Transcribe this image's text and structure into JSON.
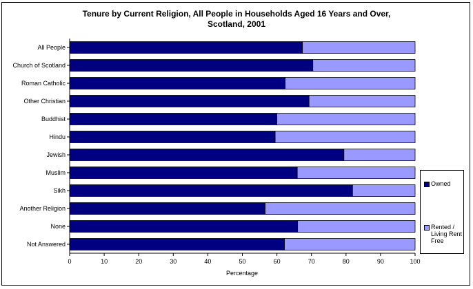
{
  "chart_data": {
    "type": "bar",
    "orientation": "horizontal",
    "stacked": true,
    "title": [
      "Tenure by Current Religion, All People in Households Aged 16 Years and Over,",
      "Scotland, 2001"
    ],
    "xlabel": "Percentage",
    "ylabel": "",
    "xlim": [
      0,
      100
    ],
    "xticks": [
      0,
      10,
      20,
      30,
      40,
      50,
      60,
      70,
      80,
      90,
      100
    ],
    "categories": [
      "All People",
      "Church of Scotland",
      "Roman Catholic",
      "Other Christian",
      "Buddhist",
      "Hindu",
      "Jewish",
      "Muslim",
      "Sikh",
      "Another Religion",
      "None",
      "Not Answered"
    ],
    "series": [
      {
        "name": "Owned",
        "color": "#000080",
        "values": [
          67.4,
          70.4,
          62.4,
          69.3,
          60.0,
          59.5,
          79.4,
          65.9,
          81.9,
          56.6,
          66.0,
          62.2
        ]
      },
      {
        "name": "Rented / Living Rent Free",
        "color": "#9999ff",
        "values": [
          32.6,
          29.6,
          37.6,
          30.7,
          40.0,
          40.5,
          20.6,
          34.1,
          18.1,
          43.4,
          34.0,
          37.8
        ]
      }
    ],
    "grid": false,
    "legend_position": "right"
  },
  "legend": {
    "owned_label": "Owned",
    "rented_label": "Rented / Living Rent Free"
  }
}
